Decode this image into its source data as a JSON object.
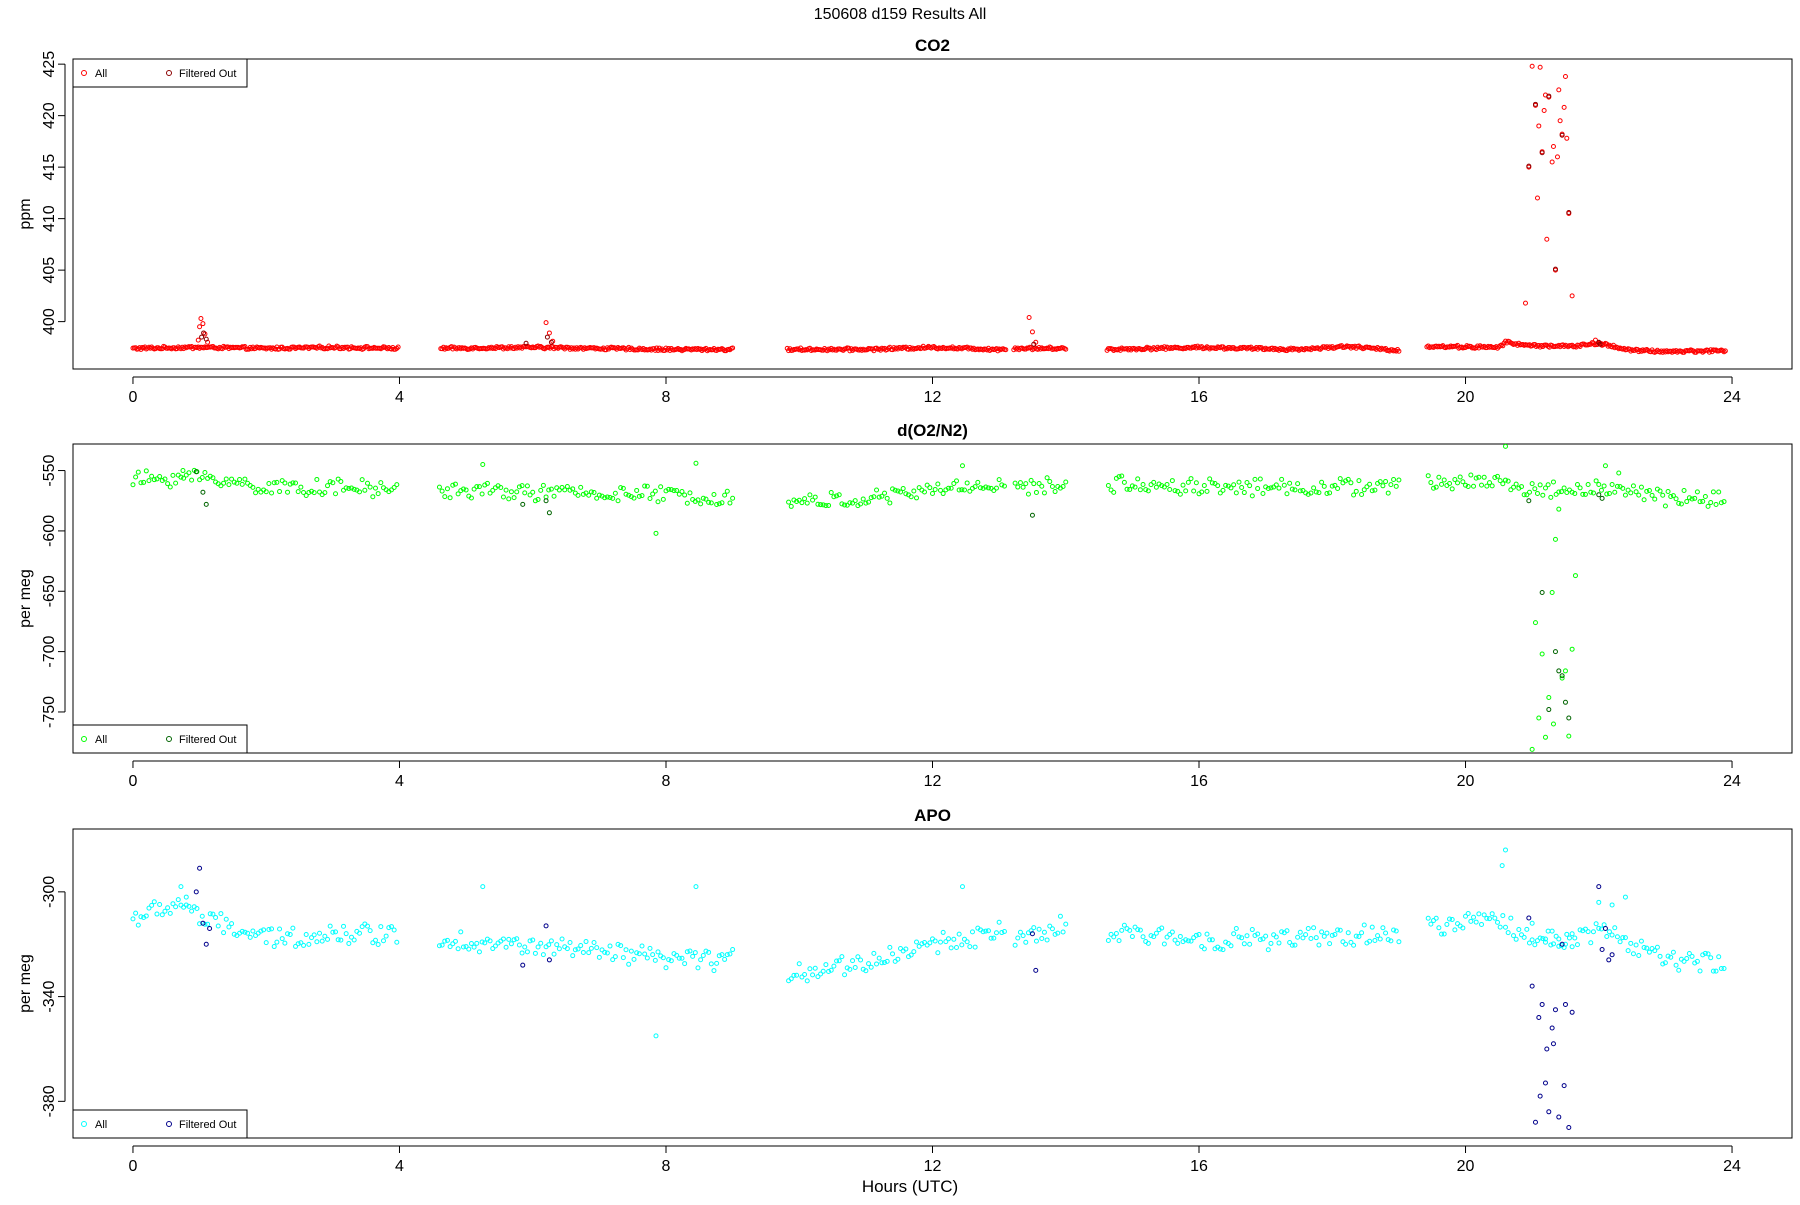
{
  "figure": {
    "title": "150608   d159   Results All",
    "xlabel": "Hours (UTC)"
  },
  "chart_data": [
    {
      "type": "scatter",
      "title": "CO2",
      "ylabel": "ppm",
      "xlim": [
        -0.9,
        24.9
      ],
      "ylim": [
        395.4,
        425.5
      ],
      "x_ticks": [
        0,
        4,
        8,
        12,
        16,
        20,
        24
      ],
      "y_ticks": [
        400,
        405,
        410,
        415,
        420,
        425
      ],
      "legend": {
        "position": "top-left",
        "entries": [
          "All",
          "Filtered Out"
        ]
      },
      "colors": {
        "all": "#ff0000",
        "filtered": "#8b0000"
      },
      "gaps": [
        [
          4.0,
          4.6
        ],
        [
          9.0,
          9.8
        ],
        [
          13.1,
          13.2
        ],
        [
          14.0,
          14.6
        ],
        [
          19.0,
          19.4
        ]
      ],
      "baseline": [
        [
          0,
          397.4
        ],
        [
          1,
          397.5
        ],
        [
          2,
          397.4
        ],
        [
          3,
          397.5
        ],
        [
          4,
          397.4
        ],
        [
          4.6,
          397.4
        ],
        [
          6,
          397.5
        ],
        [
          7,
          397.4
        ],
        [
          8,
          397.3
        ],
        [
          9,
          397.3
        ],
        [
          9.8,
          397.3
        ],
        [
          11,
          397.3
        ],
        [
          12,
          397.5
        ],
        [
          13,
          397.3
        ],
        [
          13.2,
          397.4
        ],
        [
          14,
          397.4
        ],
        [
          14.6,
          397.3
        ],
        [
          16,
          397.5
        ],
        [
          17.5,
          397.3
        ],
        [
          18.2,
          397.6
        ],
        [
          19,
          397.2
        ],
        [
          19.4,
          397.6
        ],
        [
          20.5,
          397.5
        ],
        [
          20.6,
          398.0
        ],
        [
          20.9,
          397.7
        ],
        [
          21.6,
          397.6
        ],
        [
          22,
          397.9
        ],
        [
          22.5,
          397.2
        ],
        [
          23,
          397.1
        ],
        [
          24,
          397.2
        ]
      ],
      "jitter": 0.12,
      "step": 0.02,
      "series": [
        {
          "name": "All",
          "x": [
            0.98,
            1.0,
            1.02,
            1.05,
            1.08,
            1.12,
            6.2,
            6.25,
            6.3,
            13.45,
            13.5,
            13.55,
            20.9,
            20.95,
            21.0,
            21.05,
            21.08,
            21.1,
            21.12,
            21.15,
            21.18,
            21.2,
            21.22,
            21.25,
            21.3,
            21.32,
            21.35,
            21.38,
            21.4,
            21.42,
            21.45,
            21.48,
            21.5,
            21.52,
            21.55,
            21.6,
            21.95,
            22.0,
            22.05
          ],
          "y": [
            398.2,
            399.5,
            400.3,
            399.8,
            398.8,
            398.0,
            399.9,
            398.9,
            398.1,
            400.4,
            399.0,
            398.0,
            401.8,
            415.0,
            424.8,
            421.0,
            412.0,
            419.0,
            424.7,
            416.5,
            420.5,
            422.0,
            408.0,
            421.8,
            415.5,
            417.0,
            405.0,
            416.0,
            422.5,
            419.5,
            418.2,
            420.8,
            423.8,
            417.8,
            410.5,
            402.5,
            398.2,
            397.9,
            397.7
          ]
        },
        {
          "name": "Filtered Out",
          "x": [
            1.03,
            1.06,
            1.1,
            5.9,
            6.22,
            6.28,
            13.52,
            20.95,
            21.05,
            21.15,
            21.25,
            21.35,
            21.45,
            21.55,
            22.0,
            22.02
          ],
          "y": [
            398.5,
            398.9,
            398.3,
            397.9,
            398.5,
            398.0,
            397.8,
            415.1,
            421.1,
            416.4,
            421.9,
            405.1,
            418.1,
            410.6,
            398.0,
            397.8
          ]
        }
      ]
    },
    {
      "type": "scatter",
      "title": "d(O2/N2)",
      "ylabel": "per meg",
      "xlim": [
        -0.9,
        24.9
      ],
      "ylim": [
        -784,
        -528
      ],
      "x_ticks": [
        0,
        4,
        8,
        12,
        16,
        20,
        24
      ],
      "y_ticks": [
        -550,
        -600,
        -650,
        -700,
        -750
      ],
      "legend": {
        "position": "bottom-left",
        "entries": [
          "All",
          "Filtered Out"
        ]
      },
      "colors": {
        "all": "#00ff00",
        "filtered": "#006400"
      },
      "gaps": [
        [
          4.0,
          4.6
        ],
        [
          9.0,
          9.8
        ],
        [
          13.1,
          13.2
        ],
        [
          14.0,
          14.6
        ],
        [
          19.0,
          19.4
        ]
      ],
      "baseline": [
        [
          0,
          -558
        ],
        [
          1,
          -555
        ],
        [
          2,
          -564
        ],
        [
          3,
          -564
        ],
        [
          4,
          -566
        ],
        [
          4.6,
          -566
        ],
        [
          6,
          -568
        ],
        [
          7,
          -569
        ],
        [
          8,
          -570
        ],
        [
          9,
          -573
        ],
        [
          9.8,
          -576
        ],
        [
          11,
          -574
        ],
        [
          12,
          -566
        ],
        [
          13,
          -561
        ],
        [
          13.2,
          -565
        ],
        [
          14,
          -562
        ],
        [
          14.6,
          -561
        ],
        [
          16,
          -563
        ],
        [
          17.5,
          -564
        ],
        [
          19,
          -563
        ],
        [
          19.4,
          -561
        ],
        [
          20.5,
          -558
        ],
        [
          20.9,
          -566
        ],
        [
          21.6,
          -566
        ],
        [
          22,
          -564
        ],
        [
          23,
          -572
        ],
        [
          24,
          -574
        ]
      ],
      "jitter": 6,
      "step": 0.04,
      "series": [
        {
          "name": "All",
          "x": [
            0.75,
            5.25,
            7.85,
            8.45,
            12.45,
            20.6,
            21.0,
            21.05,
            21.1,
            21.15,
            21.2,
            21.25,
            21.3,
            21.32,
            21.35,
            21.4,
            21.45,
            21.5,
            21.55,
            21.6,
            21.65,
            22.1,
            22.3
          ],
          "y": [
            -550,
            -545,
            -602,
            -544,
            -546,
            -530,
            -781,
            -676,
            -755,
            -702,
            -771,
            -738,
            -651,
            -760,
            -607,
            -582,
            -722,
            -716,
            -770,
            -698,
            -637,
            -546,
            -552
          ]
        },
        {
          "name": "Filtered Out",
          "x": [
            0.95,
            1.05,
            1.1,
            5.85,
            6.2,
            6.25,
            13.5,
            20.95,
            21.15,
            21.25,
            21.35,
            21.4,
            21.45,
            21.5,
            21.55,
            22.0,
            22.05
          ],
          "y": [
            -551,
            -568,
            -578,
            -578,
            -575,
            -585,
            -587,
            -575,
            -651,
            -748,
            -700,
            -716,
            -720,
            -742,
            -755,
            -570,
            -573
          ]
        }
      ]
    },
    {
      "type": "scatter",
      "title": "APO",
      "ylabel": "per meg",
      "xlim": [
        -0.9,
        24.9
      ],
      "ylim": [
        -394,
        -276
      ],
      "x_ticks": [
        0,
        4,
        8,
        12,
        16,
        20,
        24
      ],
      "y_ticks": [
        -300,
        -340,
        -380
      ],
      "legend": {
        "position": "bottom-left",
        "entries": [
          "All",
          "Filtered Out"
        ]
      },
      "colors": {
        "all": "#00ffff",
        "filtered": "#00008b"
      },
      "gaps": [
        [
          4.0,
          4.6
        ],
        [
          9.0,
          9.8
        ],
        [
          13.1,
          13.2
        ],
        [
          14.0,
          14.6
        ],
        [
          19.0,
          19.4
        ]
      ],
      "baseline": [
        [
          0,
          -310
        ],
        [
          0.8,
          -304
        ],
        [
          1,
          -310
        ],
        [
          2,
          -318
        ],
        [
          3,
          -316
        ],
        [
          4,
          -316
        ],
        [
          4.6,
          -318
        ],
        [
          6,
          -321
        ],
        [
          7,
          -323
        ],
        [
          8,
          -326
        ],
        [
          9,
          -326
        ],
        [
          9.8,
          -331
        ],
        [
          11,
          -327
        ],
        [
          12,
          -320
        ],
        [
          13,
          -315
        ],
        [
          13.2,
          -320
        ],
        [
          14,
          -313
        ],
        [
          14.6,
          -316
        ],
        [
          16,
          -318
        ],
        [
          17.5,
          -318
        ],
        [
          19,
          -316
        ],
        [
          19.4,
          -314
        ],
        [
          20.5,
          -310
        ],
        [
          20.9,
          -318
        ],
        [
          21.6,
          -318
        ],
        [
          22,
          -314
        ],
        [
          23,
          -326
        ],
        [
          24,
          -328
        ]
      ],
      "jitter": 3.5,
      "step": 0.04,
      "series": [
        {
          "name": "All",
          "x": [
            0.72,
            0.8,
            5.25,
            7.85,
            8.45,
            12.45,
            20.55,
            20.6,
            21.0,
            21.2,
            21.3,
            21.4,
            21.5,
            21.6,
            22.0,
            22.2,
            22.4
          ],
          "y": [
            -298,
            -302,
            -298,
            -355,
            -298,
            -298,
            -290,
            -284,
            -312,
            -318,
            -315,
            -318,
            -320,
            -316,
            -304,
            -305,
            -302
          ]
        },
        {
          "name": "Filtered Out",
          "x": [
            0.95,
            1.0,
            1.05,
            1.1,
            1.15,
            5.85,
            6.2,
            6.25,
            13.5,
            13.55,
            20.95,
            21.0,
            21.05,
            21.1,
            21.12,
            21.15,
            21.2,
            21.22,
            21.25,
            21.3,
            21.32,
            21.35,
            21.4,
            21.45,
            21.48,
            21.5,
            21.55,
            21.6,
            22.0,
            22.05,
            22.1,
            22.15,
            22.2
          ],
          "y": [
            -300,
            -291,
            -312,
            -320,
            -314,
            -328,
            -313,
            -326,
            -316,
            -330,
            -310,
            -336,
            -388,
            -348,
            -378,
            -343,
            -373,
            -360,
            -384,
            -352,
            -358,
            -345,
            -386,
            -320,
            -374,
            -343,
            -390,
            -346,
            -298,
            -322,
            -314,
            -326,
            -324
          ]
        }
      ]
    }
  ]
}
